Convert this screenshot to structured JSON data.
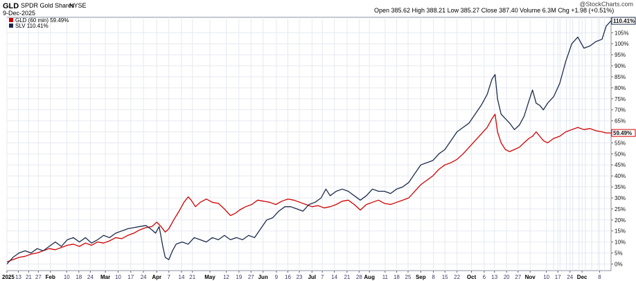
{
  "header": {
    "symbol": "GLD",
    "name": "SPDR Gold Shares",
    "exchange": "NYSE",
    "date": "9-Dec-2025",
    "ohlc": "Open 385.62   High 388.21   Low 385.27   Close 387.40   Volume 6.3M   Chg +1.98 (+0.51%)",
    "watermark": "@StockCharts.com"
  },
  "legend": {
    "gld": "GLD (60 min) 59.49%",
    "slv": "SLV 110.41%"
  },
  "colors": {
    "gld": "#d00000",
    "slv": "#1b2a4a",
    "grid": "#e6e9f0",
    "axis": "#8a8fa0"
  },
  "chart_data": {
    "type": "line",
    "title": "",
    "y_ticks": [
      "0%",
      "5%",
      "10%",
      "15%",
      "20%",
      "25%",
      "30%",
      "35%",
      "40%",
      "45%",
      "50%",
      "55%",
      "60%",
      "65%",
      "70%",
      "75%",
      "80%",
      "85%",
      "90%",
      "95%",
      "100%",
      "105%"
    ],
    "ylim": [
      -3,
      112
    ],
    "x_labels": [
      {
        "label": "2025",
        "pos": 0.0,
        "month": true
      },
      {
        "label": "13",
        "pos": 0.019
      },
      {
        "label": "21",
        "pos": 0.036
      },
      {
        "label": "27",
        "pos": 0.052
      },
      {
        "label": "Feb",
        "pos": 0.072,
        "month": true
      },
      {
        "label": "10",
        "pos": 0.099
      },
      {
        "label": "18",
        "pos": 0.119
      },
      {
        "label": "24",
        "pos": 0.138
      },
      {
        "label": "Mar",
        "pos": 0.163,
        "month": true
      },
      {
        "label": "10",
        "pos": 0.184
      },
      {
        "label": "17",
        "pos": 0.205
      },
      {
        "label": "24",
        "pos": 0.226
      },
      {
        "label": "Apr",
        "pos": 0.248,
        "month": true
      },
      {
        "label": "7",
        "pos": 0.268
      },
      {
        "label": "14",
        "pos": 0.289
      },
      {
        "label": "21",
        "pos": 0.307
      },
      {
        "label": "May",
        "pos": 0.336,
        "month": true
      },
      {
        "label": "12",
        "pos": 0.363
      },
      {
        "label": "19",
        "pos": 0.384
      },
      {
        "label": "27",
        "pos": 0.404
      },
      {
        "label": "Jun",
        "pos": 0.424,
        "month": true
      },
      {
        "label": "9",
        "pos": 0.446
      },
      {
        "label": "16",
        "pos": 0.465
      },
      {
        "label": "23",
        "pos": 0.484
      },
      {
        "label": "Jul",
        "pos": 0.505,
        "month": true
      },
      {
        "label": "7",
        "pos": 0.522
      },
      {
        "label": "14",
        "pos": 0.542
      },
      {
        "label": "21",
        "pos": 0.563
      },
      {
        "label": "28",
        "pos": 0.583
      },
      {
        "label": "Aug",
        "pos": 0.6,
        "month": true
      },
      {
        "label": "11",
        "pos": 0.626
      },
      {
        "label": "18",
        "pos": 0.645
      },
      {
        "label": "25",
        "pos": 0.664
      },
      {
        "label": "Sep",
        "pos": 0.685,
        "month": true
      },
      {
        "label": "8",
        "pos": 0.706
      },
      {
        "label": "15",
        "pos": 0.725
      },
      {
        "label": "22",
        "pos": 0.745
      },
      {
        "label": "Oct",
        "pos": 0.769,
        "month": true
      },
      {
        "label": "6",
        "pos": 0.79
      },
      {
        "label": "13",
        "pos": 0.807
      },
      {
        "label": "20",
        "pos": 0.827
      },
      {
        "label": "27",
        "pos": 0.846
      },
      {
        "label": "Nov",
        "pos": 0.866,
        "month": true
      },
      {
        "label": "10",
        "pos": 0.893
      },
      {
        "label": "17",
        "pos": 0.912
      },
      {
        "label": "24",
        "pos": 0.932
      },
      {
        "label": "Dec",
        "pos": 0.952,
        "month": true
      },
      {
        "label": "8",
        "pos": 0.981
      }
    ],
    "series": [
      {
        "name": "GLD (60 min)",
        "last_label": "59.49%",
        "points": [
          [
            0.0,
            1
          ],
          [
            0.01,
            2
          ],
          [
            0.02,
            3
          ],
          [
            0.03,
            3.5
          ],
          [
            0.04,
            4.5
          ],
          [
            0.05,
            5
          ],
          [
            0.06,
            6
          ],
          [
            0.07,
            7
          ],
          [
            0.08,
            6.5
          ],
          [
            0.09,
            7.5
          ],
          [
            0.1,
            8.5
          ],
          [
            0.11,
            9
          ],
          [
            0.12,
            8
          ],
          [
            0.13,
            9.5
          ],
          [
            0.14,
            8.5
          ],
          [
            0.15,
            10
          ],
          [
            0.16,
            9.5
          ],
          [
            0.17,
            10.5
          ],
          [
            0.18,
            12
          ],
          [
            0.19,
            11.5
          ],
          [
            0.2,
            13
          ],
          [
            0.21,
            14
          ],
          [
            0.22,
            15.5
          ],
          [
            0.23,
            16.5
          ],
          [
            0.24,
            17
          ],
          [
            0.248,
            19
          ],
          [
            0.255,
            17
          ],
          [
            0.262,
            14.5
          ],
          [
            0.268,
            16
          ],
          [
            0.276,
            20
          ],
          [
            0.285,
            24
          ],
          [
            0.293,
            28
          ],
          [
            0.3,
            30.5
          ],
          [
            0.305,
            29
          ],
          [
            0.312,
            26
          ],
          [
            0.32,
            28
          ],
          [
            0.33,
            29.5
          ],
          [
            0.34,
            28
          ],
          [
            0.35,
            27.5
          ],
          [
            0.36,
            25
          ],
          [
            0.37,
            22
          ],
          [
            0.378,
            23
          ],
          [
            0.385,
            24.5
          ],
          [
            0.395,
            26
          ],
          [
            0.405,
            27
          ],
          [
            0.415,
            29
          ],
          [
            0.425,
            28.5
          ],
          [
            0.435,
            28
          ],
          [
            0.445,
            27
          ],
          [
            0.455,
            28.5
          ],
          [
            0.465,
            29.5
          ],
          [
            0.475,
            29
          ],
          [
            0.485,
            28
          ],
          [
            0.495,
            27
          ],
          [
            0.505,
            26
          ],
          [
            0.515,
            26.5
          ],
          [
            0.525,
            25.5
          ],
          [
            0.535,
            26
          ],
          [
            0.545,
            27
          ],
          [
            0.555,
            28.5
          ],
          [
            0.565,
            29
          ],
          [
            0.575,
            27
          ],
          [
            0.585,
            24.5
          ],
          [
            0.595,
            27
          ],
          [
            0.605,
            28
          ],
          [
            0.615,
            29
          ],
          [
            0.625,
            27.5
          ],
          [
            0.635,
            27
          ],
          [
            0.645,
            28
          ],
          [
            0.655,
            29
          ],
          [
            0.665,
            30
          ],
          [
            0.675,
            33
          ],
          [
            0.685,
            36
          ],
          [
            0.695,
            38
          ],
          [
            0.705,
            40
          ],
          [
            0.715,
            43
          ],
          [
            0.725,
            45
          ],
          [
            0.735,
            46
          ],
          [
            0.745,
            47.5
          ],
          [
            0.755,
            50
          ],
          [
            0.765,
            53
          ],
          [
            0.775,
            56
          ],
          [
            0.785,
            59
          ],
          [
            0.795,
            62
          ],
          [
            0.803,
            66
          ],
          [
            0.808,
            68
          ],
          [
            0.812,
            60
          ],
          [
            0.818,
            55
          ],
          [
            0.825,
            52
          ],
          [
            0.832,
            51
          ],
          [
            0.84,
            52
          ],
          [
            0.848,
            53
          ],
          [
            0.856,
            55
          ],
          [
            0.864,
            57
          ],
          [
            0.87,
            58
          ],
          [
            0.876,
            60
          ],
          [
            0.882,
            58
          ],
          [
            0.888,
            56
          ],
          [
            0.895,
            55
          ],
          [
            0.905,
            57
          ],
          [
            0.915,
            58
          ],
          [
            0.925,
            60
          ],
          [
            0.935,
            61
          ],
          [
            0.945,
            62
          ],
          [
            0.955,
            61
          ],
          [
            0.965,
            61.5
          ],
          [
            0.975,
            60.5
          ],
          [
            0.985,
            60
          ],
          [
            0.992,
            59.5
          ],
          [
            1.0,
            59.49
          ]
        ]
      },
      {
        "name": "SLV",
        "last_label": "110.41%",
        "points": [
          [
            0.0,
            0
          ],
          [
            0.01,
            3
          ],
          [
            0.02,
            5
          ],
          [
            0.03,
            6
          ],
          [
            0.04,
            5
          ],
          [
            0.05,
            7
          ],
          [
            0.06,
            6
          ],
          [
            0.07,
            8
          ],
          [
            0.08,
            10
          ],
          [
            0.09,
            8
          ],
          [
            0.1,
            11
          ],
          [
            0.11,
            12
          ],
          [
            0.12,
            10
          ],
          [
            0.13,
            12
          ],
          [
            0.14,
            9.5
          ],
          [
            0.15,
            11
          ],
          [
            0.16,
            13
          ],
          [
            0.17,
            12
          ],
          [
            0.18,
            14
          ],
          [
            0.19,
            15
          ],
          [
            0.2,
            16
          ],
          [
            0.21,
            16.5
          ],
          [
            0.22,
            17
          ],
          [
            0.23,
            17.5
          ],
          [
            0.24,
            15.5
          ],
          [
            0.246,
            14
          ],
          [
            0.252,
            17
          ],
          [
            0.258,
            8
          ],
          [
            0.262,
            3
          ],
          [
            0.268,
            2
          ],
          [
            0.274,
            6
          ],
          [
            0.28,
            9
          ],
          [
            0.29,
            10
          ],
          [
            0.3,
            9
          ],
          [
            0.31,
            12
          ],
          [
            0.32,
            11
          ],
          [
            0.33,
            10
          ],
          [
            0.34,
            12
          ],
          [
            0.35,
            11
          ],
          [
            0.36,
            13
          ],
          [
            0.37,
            11
          ],
          [
            0.38,
            12
          ],
          [
            0.39,
            11
          ],
          [
            0.4,
            13
          ],
          [
            0.41,
            12
          ],
          [
            0.42,
            16
          ],
          [
            0.43,
            20
          ],
          [
            0.44,
            21
          ],
          [
            0.45,
            24
          ],
          [
            0.46,
            26
          ],
          [
            0.47,
            26
          ],
          [
            0.48,
            25
          ],
          [
            0.49,
            24
          ],
          [
            0.5,
            27
          ],
          [
            0.51,
            28
          ],
          [
            0.52,
            30
          ],
          [
            0.528,
            34
          ],
          [
            0.535,
            31
          ],
          [
            0.545,
            33
          ],
          [
            0.555,
            34
          ],
          [
            0.565,
            33
          ],
          [
            0.575,
            31
          ],
          [
            0.585,
            29
          ],
          [
            0.595,
            31
          ],
          [
            0.605,
            34
          ],
          [
            0.615,
            33
          ],
          [
            0.625,
            33
          ],
          [
            0.635,
            32
          ],
          [
            0.645,
            34
          ],
          [
            0.655,
            35
          ],
          [
            0.665,
            37
          ],
          [
            0.675,
            41
          ],
          [
            0.685,
            45
          ],
          [
            0.695,
            46
          ],
          [
            0.705,
            47
          ],
          [
            0.715,
            50
          ],
          [
            0.725,
            52
          ],
          [
            0.735,
            56
          ],
          [
            0.745,
            60
          ],
          [
            0.755,
            62
          ],
          [
            0.765,
            64
          ],
          [
            0.775,
            68
          ],
          [
            0.785,
            72
          ],
          [
            0.795,
            77
          ],
          [
            0.803,
            84
          ],
          [
            0.808,
            86
          ],
          [
            0.812,
            75
          ],
          [
            0.818,
            68
          ],
          [
            0.825,
            66
          ],
          [
            0.832,
            64
          ],
          [
            0.84,
            61
          ],
          [
            0.848,
            63
          ],
          [
            0.856,
            67
          ],
          [
            0.864,
            74
          ],
          [
            0.87,
            79
          ],
          [
            0.876,
            73
          ],
          [
            0.882,
            72
          ],
          [
            0.888,
            70
          ],
          [
            0.895,
            73
          ],
          [
            0.905,
            76
          ],
          [
            0.915,
            82
          ],
          [
            0.925,
            92
          ],
          [
            0.935,
            100
          ],
          [
            0.945,
            103
          ],
          [
            0.955,
            98
          ],
          [
            0.965,
            99
          ],
          [
            0.975,
            101
          ],
          [
            0.985,
            102
          ],
          [
            0.992,
            108
          ],
          [
            1.0,
            110.41
          ]
        ]
      }
    ]
  }
}
